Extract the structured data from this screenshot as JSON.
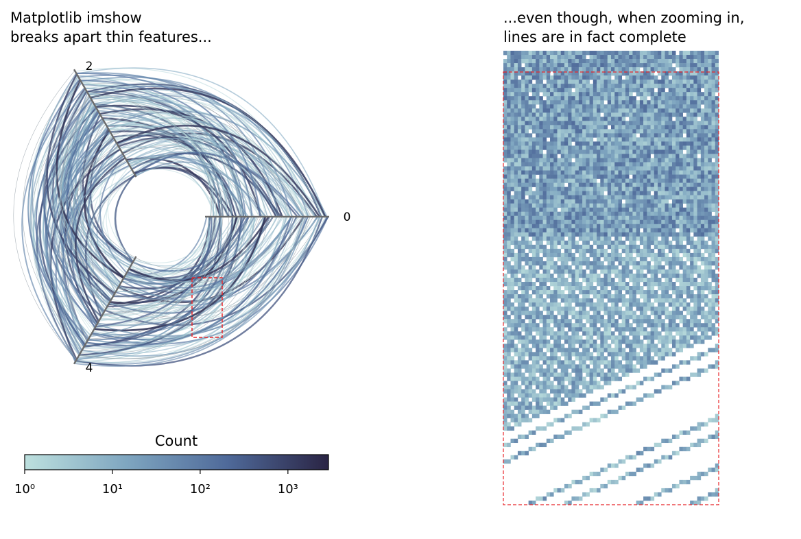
{
  "chart_data": [
    {
      "type": "hive",
      "title": [
        "Matplotlib imshow",
        "breaks apart thin features..."
      ],
      "axis_labels": [
        "0",
        "2",
        "4"
      ],
      "colorbar": {
        "label": "Count",
        "scale": "log",
        "xlim": [
          1,
          2900
        ],
        "xticks": [
          {
            "value": 1,
            "label": "10⁰"
          },
          {
            "value": 10,
            "label": "10¹"
          },
          {
            "value": 100,
            "label": "10²"
          },
          {
            "value": 1000,
            "label": "10³"
          }
        ],
        "colormap": [
          "#bde0de",
          "#7fa6c0",
          "#4f6a9a",
          "#2a2444"
        ]
      }
    },
    {
      "type": "zoom",
      "title": [
        "...even though, when zooming in,",
        "lines are in fact complete"
      ]
    }
  ]
}
